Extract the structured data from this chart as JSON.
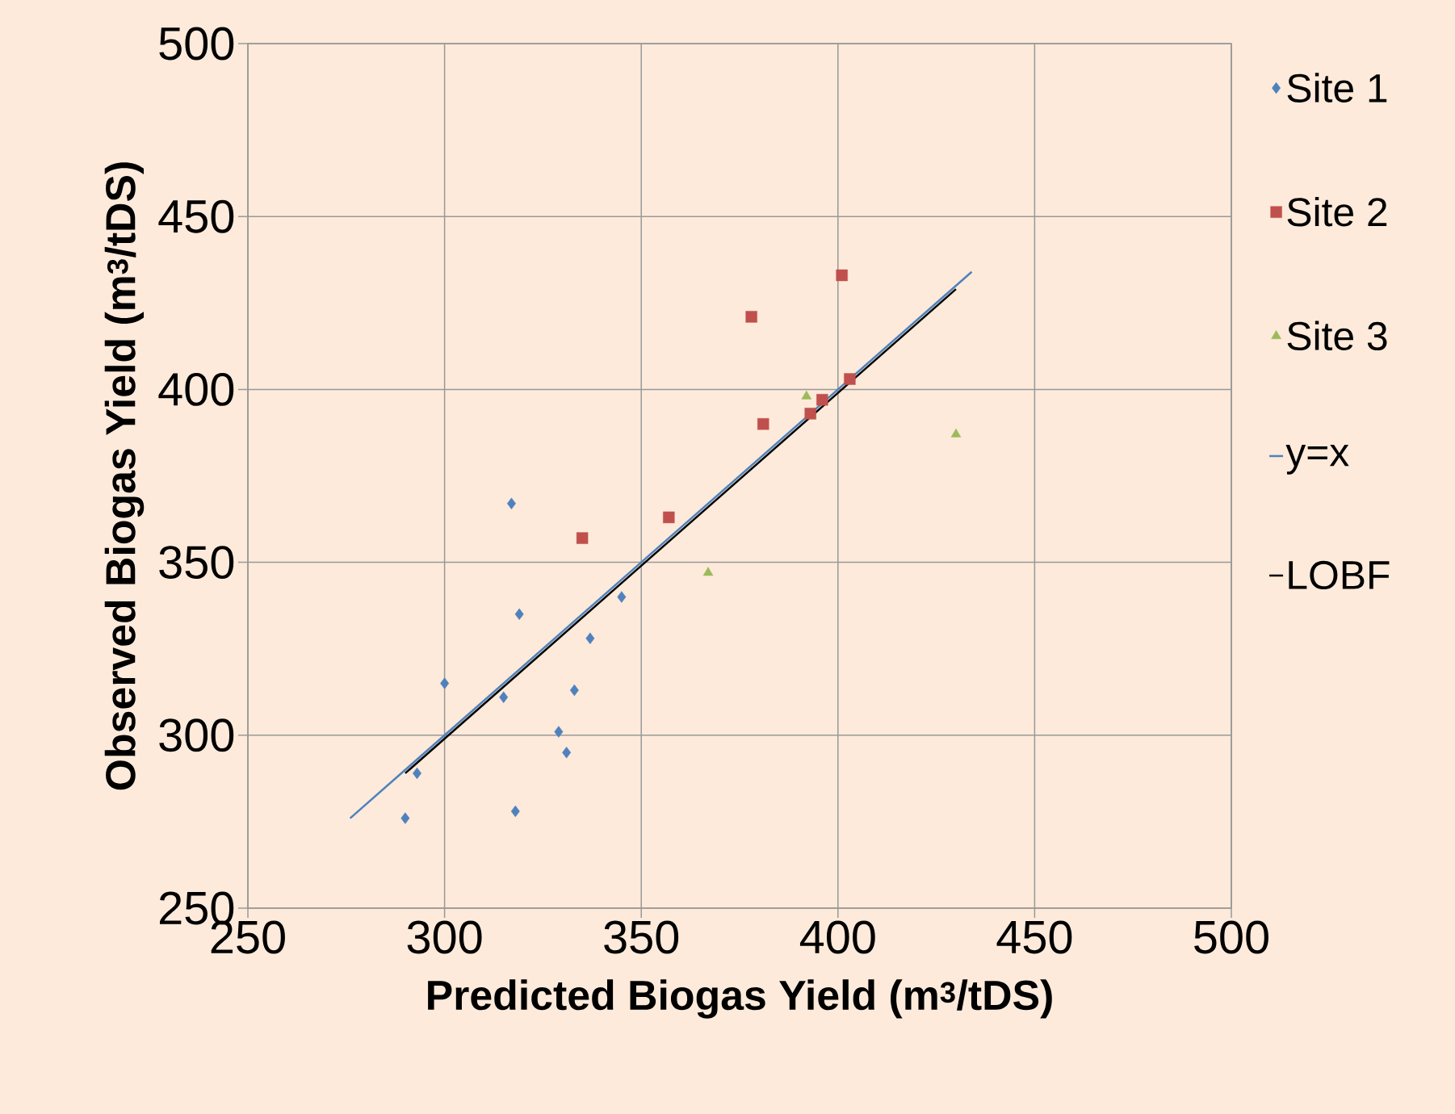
{
  "chart_data": {
    "type": "scatter",
    "xlabel": "Predicted Biogas Yield (m$^{3}$/tDS)",
    "ylabel": "Observed Biogas Yield (m$^{3}$/tDS)",
    "xlim": [
      250,
      500
    ],
    "ylim": [
      250,
      500
    ],
    "xticks": [
      250,
      300,
      350,
      400,
      450,
      500
    ],
    "yticks": [
      250,
      300,
      350,
      400,
      450,
      500
    ],
    "grid": true,
    "legend": "right",
    "series": [
      {
        "name": "Site 1",
        "color": "#4f81bd",
        "marker": "diamond",
        "x": [
          290,
          293,
          300,
          315,
          317,
          318,
          319,
          329,
          331,
          333,
          337,
          345
        ],
        "values": [
          276,
          289,
          315,
          311,
          367,
          278,
          335,
          301,
          295,
          313,
          328,
          340
        ]
      },
      {
        "name": "Site 2",
        "color": "#c0504d",
        "marker": "square",
        "x": [
          335,
          357,
          378,
          381,
          393,
          396,
          401,
          403
        ],
        "values": [
          357,
          363,
          421,
          390,
          393,
          397,
          433,
          403
        ]
      },
      {
        "name": "Site 3",
        "color": "#9bbb59",
        "marker": "triangle",
        "x": [
          367,
          392,
          430
        ],
        "values": [
          347,
          398,
          387
        ]
      },
      {
        "name": "y=x",
        "color": "#4f81bd",
        "type": "line",
        "marker": "none",
        "line_style": "solid",
        "x": [
          276,
          434
        ],
        "values": [
          276,
          434
        ]
      },
      {
        "name": "LOBF",
        "color": "#000000",
        "type": "line",
        "marker": "none",
        "line_style": "solid",
        "x": [
          290,
          430
        ],
        "values": [
          289,
          429
        ]
      }
    ]
  }
}
